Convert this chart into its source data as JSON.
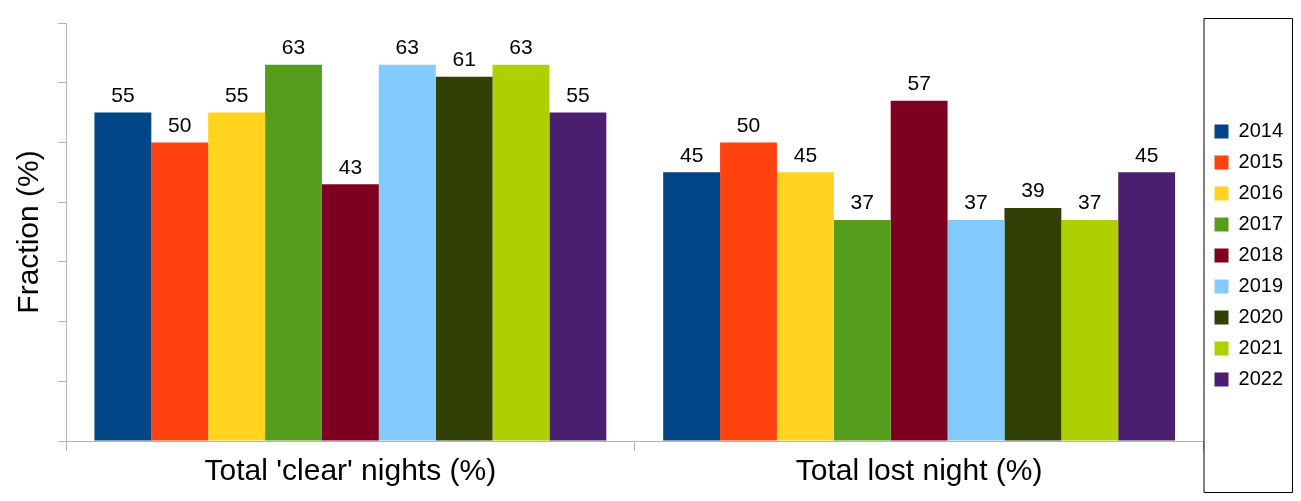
{
  "chart_data": {
    "type": "bar",
    "ylabel": "Fraction (%)",
    "categories": [
      "Total 'clear' nights (%)",
      "Total lost night (%)"
    ],
    "series": [
      {
        "name": "2014",
        "color": "#004586",
        "values": [
          55,
          45
        ]
      },
      {
        "name": "2015",
        "color": "#ff420e",
        "values": [
          50,
          50
        ]
      },
      {
        "name": "2016",
        "color": "#ffd320",
        "values": [
          55,
          45
        ]
      },
      {
        "name": "2017",
        "color": "#579d1c",
        "values": [
          63,
          37
        ]
      },
      {
        "name": "2018",
        "color": "#7e0021",
        "values": [
          43,
          57
        ]
      },
      {
        "name": "2019",
        "color": "#83caff",
        "values": [
          63,
          37
        ]
      },
      {
        "name": "2020",
        "color": "#314004",
        "values": [
          61,
          39
        ]
      },
      {
        "name": "2021",
        "color": "#aecf00",
        "values": [
          63,
          37
        ]
      },
      {
        "name": "2022",
        "color": "#4b1f6f",
        "values": [
          55,
          45
        ]
      }
    ],
    "ylim": [
      0,
      70
    ],
    "yticks": [
      {
        "value": 0,
        "label": null
      },
      {
        "value": 10,
        "label": null
      },
      {
        "value": 20,
        "label": null
      },
      {
        "value": 30,
        "label": null
      },
      {
        "value": 40,
        "label": null
      },
      {
        "value": 50,
        "label": null
      },
      {
        "value": 60,
        "label": null
      },
      {
        "value": 70,
        "label": null
      }
    ],
    "tick_labels": "x",
    "data_labels": true,
    "legend": "right"
  }
}
